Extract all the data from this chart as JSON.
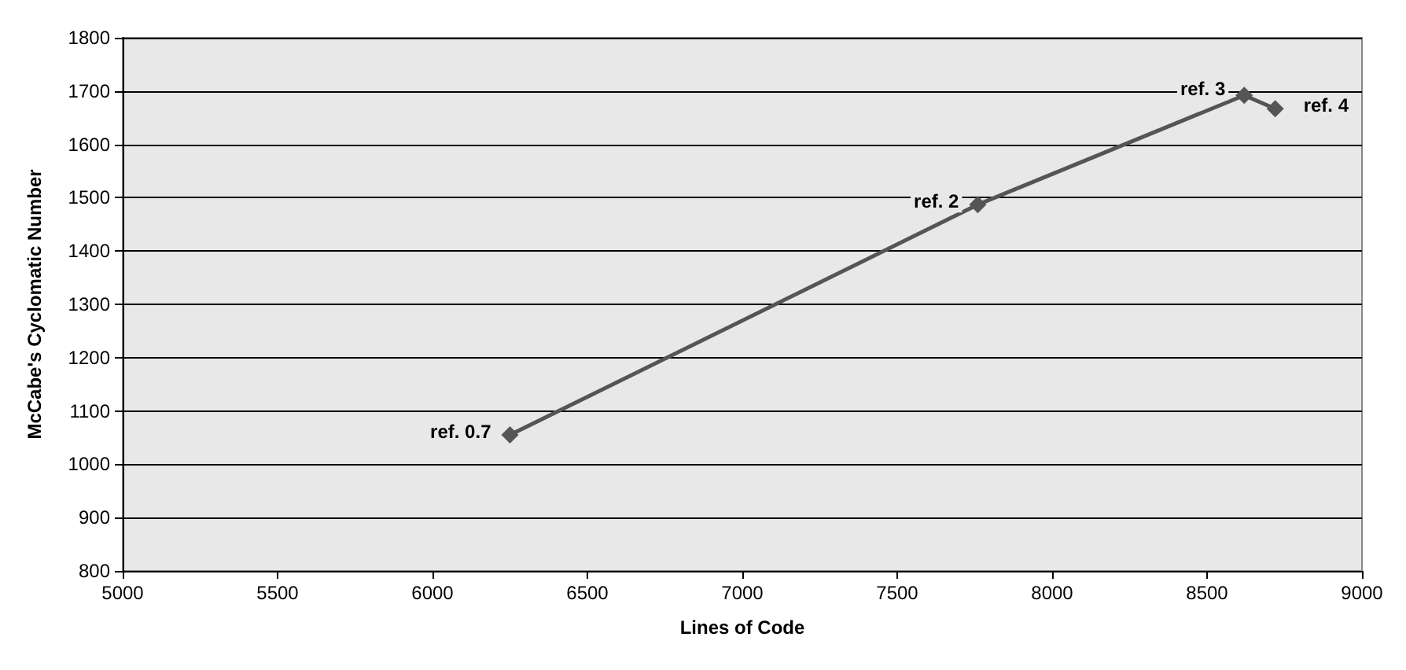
{
  "chart_data": {
    "type": "line",
    "xlabel": "Lines of Code",
    "ylabel": "McCabe's Cyclomatic Number",
    "x": [
      6250,
      7760,
      8620,
      8720
    ],
    "series": [
      {
        "color": "#555555",
        "values": [
          1055,
          1487,
          1692,
          1667
        ]
      }
    ],
    "xlim": [
      5000,
      9000
    ],
    "xticks": [
      5000,
      5500,
      6000,
      6500,
      7000,
      7500,
      8000,
      8500,
      9000
    ],
    "ylim": [
      800,
      1800
    ],
    "yticks": [
      800,
      900,
      1000,
      1100,
      1200,
      1300,
      1400,
      1500,
      1600,
      1700,
      1800
    ],
    "grid": "y",
    "marker": "diamond",
    "line_style": "solid",
    "annotations": [
      {
        "text": "ref. 0.7",
        "x": 6250,
        "y": 1055
      },
      {
        "text": "ref. 2",
        "x": 7760,
        "y": 1487
      },
      {
        "text": "ref. 3",
        "x": 8620,
        "y": 1692
      },
      {
        "text": "ref. 4",
        "x": 8720,
        "y": 1667
      }
    ]
  }
}
